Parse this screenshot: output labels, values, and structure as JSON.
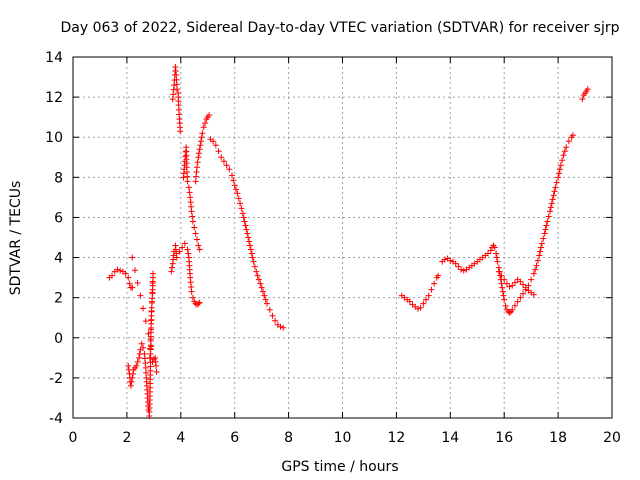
{
  "chart_data": {
    "type": "scatter",
    "title": "Day 063 of 2022, Sidereal Day-to-day VTEC variation (SDTVAR) for receiver sjrp",
    "xlabel": "GPS time / hours",
    "ylabel": "SDTVAR / TECUs",
    "xlim": [
      0,
      20
    ],
    "ylim": [
      -4,
      14
    ],
    "xticks": [
      0,
      2,
      4,
      6,
      8,
      10,
      12,
      14,
      16,
      18,
      20
    ],
    "yticks": [
      -4,
      -2,
      0,
      2,
      4,
      6,
      8,
      10,
      12,
      14
    ],
    "grid": true,
    "marker": "+",
    "color": "#ff0000",
    "series": [
      {
        "name": "SDTVAR",
        "segments": [
          [
            [
              1.35,
              3.0
            ],
            [
              1.45,
              3.1
            ],
            [
              1.55,
              3.3
            ],
            [
              1.65,
              3.4
            ],
            [
              1.75,
              3.35
            ],
            [
              1.85,
              3.3
            ],
            [
              1.95,
              3.2
            ],
            [
              2.05,
              3.0
            ],
            [
              2.1,
              2.7
            ],
            [
              2.15,
              2.5
            ],
            [
              2.2,
              2.5
            ]
          ],
          [
            [
              2.05,
              -1.4
            ],
            [
              2.1,
              -1.8
            ],
            [
              2.12,
              -2.2
            ],
            [
              2.15,
              -2.4
            ],
            [
              2.2,
              -2.0
            ],
            [
              2.25,
              -1.6
            ],
            [
              2.3,
              -1.5
            ],
            [
              2.35,
              -1.4
            ],
            [
              2.4,
              -1.2
            ],
            [
              2.45,
              -1.0
            ],
            [
              2.5,
              -0.6
            ],
            [
              2.55,
              -0.3
            ],
            [
              2.6,
              -0.5
            ],
            [
              2.65,
              -0.8
            ],
            [
              2.7,
              -1.5
            ],
            [
              2.72,
              -2.0
            ],
            [
              2.75,
              -2.6
            ],
            [
              2.78,
              -3.2
            ],
            [
              2.8,
              -3.6
            ],
            [
              2.83,
              -3.9
            ],
            [
              2.86,
              -2.7
            ],
            [
              2.88,
              -0.8
            ],
            [
              2.9,
              0.7
            ],
            [
              2.92,
              1.5
            ],
            [
              2.95,
              2.2
            ],
            [
              2.97,
              3.2
            ],
            [
              2.85,
              -1.0
            ],
            [
              2.95,
              -1.2
            ],
            [
              3.05,
              -1.0
            ],
            [
              3.08,
              -1.4
            ],
            [
              3.1,
              -1.7
            ],
            [
              2.2,
              4.0
            ]
          ],
          [
            [
              3.65,
              3.3
            ],
            [
              3.7,
              3.7
            ],
            [
              3.75,
              4.3
            ],
            [
              3.8,
              4.6
            ],
            [
              3.85,
              4.0
            ],
            [
              3.95,
              4.3
            ],
            [
              4.05,
              4.5
            ],
            [
              4.15,
              4.7
            ],
            [
              4.25,
              4.4
            ],
            [
              4.3,
              4.0
            ],
            [
              4.35,
              3.0
            ],
            [
              4.4,
              2.3
            ],
            [
              4.45,
              2.0
            ],
            [
              4.5,
              1.8
            ],
            [
              4.55,
              1.7
            ],
            [
              4.6,
              1.65
            ],
            [
              4.65,
              1.7
            ],
            [
              4.7,
              1.75
            ]
          ],
          [
            [
              3.7,
              11.9
            ],
            [
              3.75,
              12.6
            ],
            [
              3.78,
              13.1
            ],
            [
              3.8,
              13.5
            ],
            [
              3.83,
              13.1
            ],
            [
              3.86,
              12.4
            ],
            [
              3.9,
              12.2
            ],
            [
              3.92,
              11.6
            ],
            [
              3.95,
              10.9
            ],
            [
              3.98,
              10.3
            ]
          ],
          [
            [
              4.1,
              8.0
            ],
            [
              4.15,
              8.8
            ],
            [
              4.2,
              9.5
            ],
            [
              4.22,
              8.5
            ],
            [
              4.25,
              7.8
            ],
            [
              4.3,
              7.5
            ],
            [
              4.35,
              7.0
            ],
            [
              4.4,
              6.3
            ],
            [
              4.45,
              5.8
            ],
            [
              4.5,
              5.5
            ],
            [
              4.55,
              5.2
            ],
            [
              4.6,
              4.9
            ],
            [
              4.65,
              4.6
            ],
            [
              4.7,
              4.4
            ]
          ],
          [
            [
              4.55,
              7.8
            ],
            [
              4.6,
              8.5
            ],
            [
              4.65,
              9.0
            ],
            [
              4.7,
              9.4
            ],
            [
              4.75,
              9.8
            ],
            [
              4.8,
              10.2
            ],
            [
              4.85,
              10.5
            ],
            [
              4.9,
              10.7
            ],
            [
              4.95,
              10.9
            ],
            [
              5.0,
              11.0
            ],
            [
              5.05,
              11.1
            ]
          ],
          [
            [
              5.1,
              9.9
            ],
            [
              5.2,
              9.8
            ],
            [
              5.3,
              9.6
            ],
            [
              5.4,
              9.3
            ],
            [
              5.5,
              9.0
            ],
            [
              5.6,
              8.8
            ],
            [
              5.7,
              8.6
            ],
            [
              5.8,
              8.4
            ],
            [
              5.9,
              8.1
            ],
            [
              6.0,
              7.6
            ],
            [
              6.1,
              7.2
            ],
            [
              6.2,
              6.7
            ],
            [
              6.3,
              6.2
            ],
            [
              6.4,
              5.6
            ],
            [
              6.5,
              5.0
            ],
            [
              6.6,
              4.4
            ],
            [
              6.7,
              3.8
            ],
            [
              6.8,
              3.3
            ],
            [
              6.9,
              2.9
            ],
            [
              7.0,
              2.5
            ],
            [
              7.1,
              2.1
            ],
            [
              7.2,
              1.7
            ],
            [
              7.3,
              1.4
            ],
            [
              7.4,
              1.1
            ],
            [
              7.5,
              0.85
            ],
            [
              7.6,
              0.65
            ],
            [
              7.7,
              0.55
            ],
            [
              7.8,
              0.5
            ]
          ],
          [
            [
              12.2,
              2.1
            ],
            [
              12.3,
              2.0
            ],
            [
              12.4,
              1.9
            ],
            [
              12.5,
              1.8
            ],
            [
              12.6,
              1.65
            ],
            [
              12.7,
              1.55
            ],
            [
              12.8,
              1.45
            ],
            [
              12.9,
              1.5
            ],
            [
              13.0,
              1.7
            ],
            [
              13.1,
              1.9
            ],
            [
              13.2,
              2.1
            ],
            [
              13.3,
              2.4
            ],
            [
              13.4,
              2.7
            ],
            [
              13.5,
              3.0
            ],
            [
              13.55,
              3.1
            ]
          ],
          [
            [
              13.7,
              3.8
            ],
            [
              13.8,
              3.9
            ],
            [
              13.9,
              3.95
            ],
            [
              14.0,
              3.85
            ],
            [
              14.1,
              3.8
            ],
            [
              14.2,
              3.7
            ],
            [
              14.3,
              3.55
            ],
            [
              14.4,
              3.4
            ],
            [
              14.5,
              3.35
            ],
            [
              14.6,
              3.4
            ],
            [
              14.7,
              3.5
            ],
            [
              14.8,
              3.6
            ],
            [
              14.9,
              3.7
            ],
            [
              15.0,
              3.8
            ],
            [
              15.1,
              3.9
            ],
            [
              15.2,
              4.0
            ],
            [
              15.3,
              4.1
            ],
            [
              15.4,
              4.2
            ],
            [
              15.5,
              4.35
            ],
            [
              15.55,
              4.5
            ],
            [
              15.6,
              4.6
            ],
            [
              15.65,
              4.5
            ],
            [
              15.7,
              4.2
            ],
            [
              15.75,
              3.8
            ],
            [
              15.8,
              3.5
            ],
            [
              15.85,
              3.1
            ],
            [
              15.9,
              2.7
            ],
            [
              15.95,
              2.3
            ],
            [
              16.0,
              1.9
            ],
            [
              16.05,
              1.6
            ],
            [
              16.1,
              1.4
            ],
            [
              16.15,
              1.3
            ],
            [
              16.2,
              1.25
            ],
            [
              16.25,
              1.3
            ],
            [
              16.3,
              1.4
            ],
            [
              16.4,
              1.6
            ],
            [
              16.5,
              1.8
            ],
            [
              16.6,
              2.0
            ],
            [
              16.7,
              2.2
            ],
            [
              16.8,
              2.4
            ],
            [
              16.9,
              2.6
            ],
            [
              17.0,
              2.9
            ],
            [
              17.1,
              3.2
            ],
            [
              17.2,
              3.6
            ],
            [
              17.3,
              4.1
            ],
            [
              17.4,
              4.7
            ],
            [
              17.5,
              5.2
            ],
            [
              17.6,
              5.8
            ],
            [
              17.7,
              6.3
            ],
            [
              17.8,
              6.9
            ],
            [
              17.9,
              7.5
            ],
            [
              18.0,
              8.0
            ],
            [
              18.1,
              8.6
            ],
            [
              18.2,
              9.1
            ],
            [
              18.3,
              9.5
            ],
            [
              18.4,
              9.8
            ],
            [
              18.5,
              10.0
            ],
            [
              18.55,
              10.1
            ]
          ],
          [
            [
              15.8,
              3.3
            ],
            [
              15.9,
              3.1
            ],
            [
              16.0,
              2.9
            ],
            [
              16.1,
              2.7
            ],
            [
              16.2,
              2.55
            ],
            [
              16.3,
              2.6
            ],
            [
              16.4,
              2.75
            ],
            [
              16.5,
              2.9
            ],
            [
              16.6,
              2.8
            ],
            [
              16.7,
              2.65
            ],
            [
              16.8,
              2.5
            ],
            [
              16.9,
              2.35
            ],
            [
              17.0,
              2.25
            ],
            [
              17.1,
              2.15
            ]
          ],
          [
            [
              18.9,
              11.9
            ],
            [
              18.95,
              12.1
            ],
            [
              19.0,
              12.2
            ],
            [
              19.05,
              12.3
            ],
            [
              19.1,
              12.4
            ]
          ]
        ]
      }
    ]
  }
}
